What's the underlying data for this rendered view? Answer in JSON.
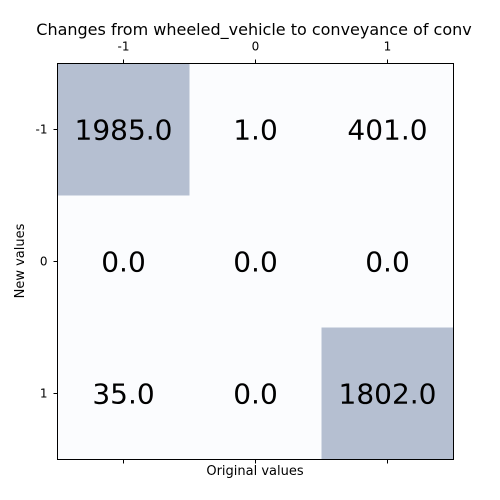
{
  "chart_data": {
    "type": "heatmap",
    "title": "Changes from wheeled_vehicle to conveyance of conv",
    "xlabel": "Original values",
    "ylabel": "New values",
    "x_categories": [
      "-1",
      "0",
      "1"
    ],
    "y_categories": [
      "-1",
      "0",
      "1"
    ],
    "values": [
      [
        1985.0,
        1.0,
        401.0
      ],
      [
        0.0,
        0.0,
        0.0
      ],
      [
        35.0,
        0.0,
        1802.0
      ]
    ],
    "cell_labels": [
      [
        "1985.0",
        "1.0",
        "401.0"
      ],
      [
        "0.0",
        "0.0",
        "0.0"
      ],
      [
        "35.0",
        "0.0",
        "1802.0"
      ]
    ],
    "highlight_color": "#b5bfd1",
    "background_color": "#fbfcfe",
    "x_ticks_position": "top"
  }
}
